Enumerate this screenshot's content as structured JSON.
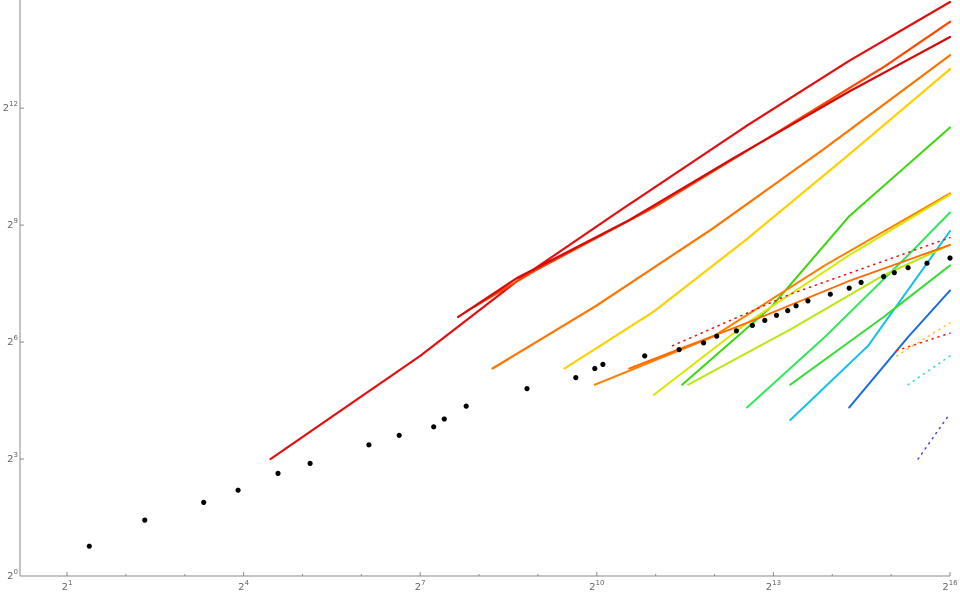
{
  "chart_data": {
    "type": "scatter",
    "title": "",
    "xlabel": "",
    "ylabel": "",
    "x_scale": "log2",
    "y_scale": "log2",
    "xlim": [
      1.15,
      65536
    ],
    "ylim": [
      1,
      28000
    ],
    "grid": false,
    "legend": "none",
    "x_ticks": [
      {
        "value": 2,
        "base": "2",
        "exp": "1"
      },
      {
        "value": 16,
        "base": "2",
        "exp": "4"
      },
      {
        "value": 128,
        "base": "2",
        "exp": "7"
      },
      {
        "value": 1024,
        "base": "2",
        "exp": "10"
      },
      {
        "value": 8192,
        "base": "2",
        "exp": "13"
      },
      {
        "value": 65536,
        "base": "2",
        "exp": "16"
      }
    ],
    "y_ticks": [
      {
        "value": 1,
        "base": "2",
        "exp": "0"
      },
      {
        "value": 8,
        "base": "2",
        "exp": "3"
      },
      {
        "value": 64,
        "base": "2",
        "exp": "6"
      },
      {
        "value": 512,
        "base": "2",
        "exp": "9"
      },
      {
        "value": 4096,
        "base": "2",
        "exp": "12"
      }
    ],
    "series": [
      {
        "color": "#e01010",
        "width": 2.2,
        "x": [
          22,
          128,
          420,
          1300,
          6000,
          20000,
          65536
        ],
        "y": [
          8,
          50,
          200,
          640,
          3000,
          9500,
          27000
        ]
      },
      {
        "color": "#ff4500",
        "width": 2.2,
        "x": [
          220,
          500,
          2000,
          8000,
          30000,
          65536
        ],
        "y": [
          110,
          230,
          700,
          2500,
          8500,
          19000
        ]
      },
      {
        "color": "#d40a0a",
        "width": 2.2,
        "x": [
          200,
          400,
          1500,
          5000,
          20000,
          65536
        ],
        "y": [
          100,
          200,
          560,
          1650,
          5500,
          14500
        ]
      },
      {
        "color": "#ff7400",
        "width": 2.2,
        "x": [
          300,
          1000,
          4000,
          15000,
          65536
        ],
        "y": [
          40,
          120,
          480,
          2000,
          10500
        ]
      },
      {
        "color": "#ffd000",
        "width": 2.2,
        "x": [
          700,
          2000,
          6000,
          20000,
          65536
        ],
        "y": [
          40,
          110,
          400,
          1800,
          8200
        ]
      },
      {
        "color": "#3ad80a",
        "width": 2,
        "x": [
          2800,
          8000,
          20000,
          65536
        ],
        "y": [
          30,
          120,
          600,
          2900
        ]
      },
      {
        "color": "#ff8000",
        "width": 2,
        "x": [
          1000,
          4000,
          15000,
          65536
        ],
        "y": [
          30,
          70,
          250,
          900
        ]
      },
      {
        "color": "#d8e800",
        "width": 2,
        "x": [
          2000,
          6000,
          20000,
          65536
        ],
        "y": [
          25,
          90,
          300,
          880
        ]
      },
      {
        "color": "#2ee85a",
        "width": 2,
        "x": [
          6000,
          15000,
          40000,
          65536
        ],
        "y": [
          20,
          70,
          300,
          640
        ]
      },
      {
        "color": "#12c0e8",
        "width": 2,
        "x": [
          10000,
          25000,
          65536
        ],
        "y": [
          16,
          60,
          460
        ]
      },
      {
        "color": "#b8e810",
        "width": 2,
        "x": [
          3000,
          10000,
          30000,
          65536
        ],
        "y": [
          30,
          80,
          210,
          360
        ]
      },
      {
        "color": "#ff6a00",
        "width": 1.8,
        "x": [
          1500,
          6000,
          20000,
          65536
        ],
        "y": [
          40,
          90,
          190,
          360
        ]
      },
      {
        "color": "#1a6ae0",
        "width": 2,
        "x": [
          20000,
          40000,
          65536
        ],
        "y": [
          20,
          70,
          160
        ]
      },
      {
        "color": "#33dd33",
        "width": 2,
        "x": [
          10000,
          30000,
          65536
        ],
        "y": [
          30,
          100,
          250
        ]
      },
      {
        "color": "#e81010",
        "width": 1.5,
        "dotted": true,
        "x": [
          2500,
          10000,
          30000,
          65536
        ],
        "y": [
          60,
          150,
          270,
          410
        ]
      },
      {
        "color": "#e82020",
        "width": 1.5,
        "dotted": true,
        "x": [
          35000,
          65536
        ],
        "y": [
          55,
          75
        ]
      },
      {
        "color": "#ffc020",
        "width": 1.5,
        "dotted": true,
        "x": [
          35000,
          65536
        ],
        "y": [
          50,
          90
        ]
      },
      {
        "color": "#30e0c0",
        "width": 1.5,
        "dotted": true,
        "x": [
          40000,
          65536
        ],
        "y": [
          30,
          50
        ]
      },
      {
        "color": "#4040e8",
        "width": 1.5,
        "dotted": true,
        "x": [
          45000,
          65536
        ],
        "y": [
          8,
          18
        ]
      }
    ],
    "black_points": {
      "x": [
        2.6,
        5,
        10,
        15,
        24,
        35,
        70,
        100,
        150,
        170,
        220,
        450,
        800,
        1000,
        1100,
        1800,
        2700,
        3600,
        4200,
        5300,
        6400,
        7400,
        8500,
        9700,
        10700,
        12300,
        16000,
        20000,
        23000,
        30000,
        34000,
        40000,
        50000,
        65536
      ],
      "y": [
        1.7,
        2.7,
        3.7,
        4.6,
        6.2,
        7.4,
        10.3,
        12.2,
        14.2,
        16.3,
        20.5,
        28,
        34,
        40,
        43,
        50,
        56,
        63,
        71,
        78,
        86,
        94,
        103,
        112,
        122,
        133,
        150,
        167,
        185,
        205,
        220,
        240,
        260,
        285
      ]
    }
  }
}
